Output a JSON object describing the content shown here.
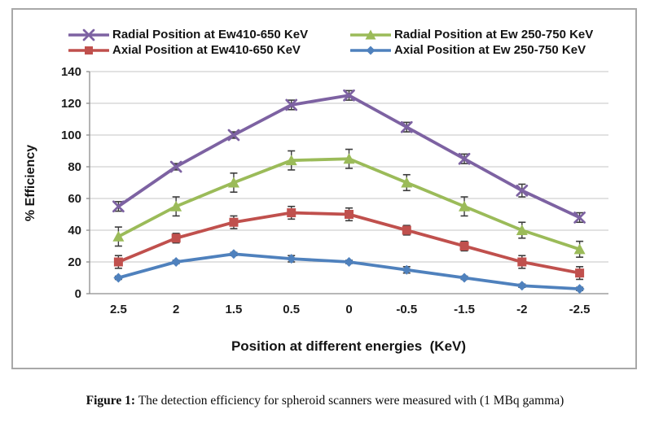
{
  "chart_data": {
    "type": "line",
    "title": "",
    "xlabel": "Position at different energies  (KeV)",
    "ylabel": "% Efficiency",
    "categories": [
      "2.5",
      "2",
      "1.5",
      "0.5",
      "0",
      "-0.5",
      "-1.5",
      "-2",
      "-2.5"
    ],
    "ylim": [
      0,
      140
    ],
    "ytick_step": 20,
    "grid": true,
    "legend_position": "top",
    "series": [
      {
        "name": "Radial Position at Ew410-650 KeV",
        "color": "#7d62a2",
        "marker": "x",
        "values": [
          55,
          80,
          100,
          119,
          125,
          105,
          85,
          65,
          48
        ],
        "errors": [
          3,
          2,
          2,
          3,
          3,
          3,
          3,
          4,
          3
        ]
      },
      {
        "name": "Radial Position at Ew 250-750 KeV",
        "color": "#9bbb59",
        "marker": "triangle",
        "values": [
          36,
          55,
          70,
          84,
          85,
          70,
          55,
          40,
          28
        ],
        "errors": [
          6,
          6,
          6,
          6,
          6,
          5,
          6,
          5,
          5
        ]
      },
      {
        "name": "Axial Position at Ew410-650 KeV",
        "color": "#c0504d",
        "marker": "square",
        "values": [
          20,
          35,
          45,
          51,
          50,
          40,
          30,
          20,
          13
        ],
        "errors": [
          4,
          3,
          4,
          4,
          4,
          3,
          3,
          4,
          4
        ]
      },
      {
        "name": "Axial Position at Ew 250-750 KeV",
        "color": "#4f81bd",
        "marker": "diamond",
        "values": [
          10,
          20,
          25,
          22,
          20,
          15,
          10,
          5,
          3
        ],
        "errors": [
          1,
          1,
          1,
          2,
          1,
          2,
          1,
          1,
          1
        ]
      }
    ],
    "error_bar_color": "#3b3b3b",
    "gridline_color": "#c6c6c6",
    "axis_line_color": "#8c8c8c"
  },
  "caption": {
    "label": "Figure 1:",
    "text": "The detection efficiency for spheroid scanners were measured with (1 MBq gamma)"
  }
}
